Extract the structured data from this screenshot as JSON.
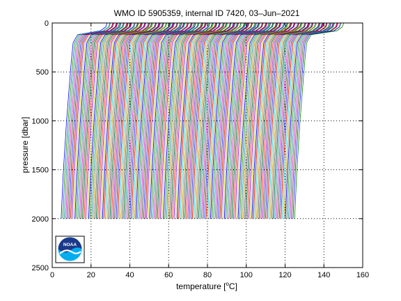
{
  "chart_data": {
    "type": "line",
    "title": "WMO ID 5905359, internal ID 7420, 03–Jun–2021",
    "xlabel_prefix": "temperature [",
    "xlabel_unit": "o",
    "xlabel_suffix": "C]",
    "ylabel": "pressure [dbar]",
    "xlim": [
      0,
      160
    ],
    "ylim": [
      2500,
      0
    ],
    "y_reversed": true,
    "x_ticks": [
      0,
      20,
      40,
      60,
      80,
      100,
      120,
      140,
      160
    ],
    "y_ticks": [
      0,
      500,
      1000,
      1500,
      2000,
      2500
    ],
    "grid": "dotted",
    "series_style": "waterfall of temperature profiles, each successive profile offset by ~0.5 in x, colors cycling",
    "series_count": 240,
    "x_offset_step": 0.5,
    "colors": [
      "#0000ff",
      "#008000",
      "#ff0000",
      "#00bfbf",
      "#bf00bf",
      "#bfbf00",
      "#404040"
    ],
    "profile_shape": {
      "pressure": [
        0,
        40,
        80,
        120,
        200,
        400,
        700,
        1000,
        1500,
        2000
      ],
      "temperature_offset": [
        24.5,
        23.8,
        21.0,
        8.5,
        6.2,
        5.2,
        4.0,
        2.8,
        1.2,
        0.0
      ]
    },
    "first_profile_base_temperature": 5,
    "last_profile_base_temperature": 125,
    "logo_text": "NOAA"
  }
}
